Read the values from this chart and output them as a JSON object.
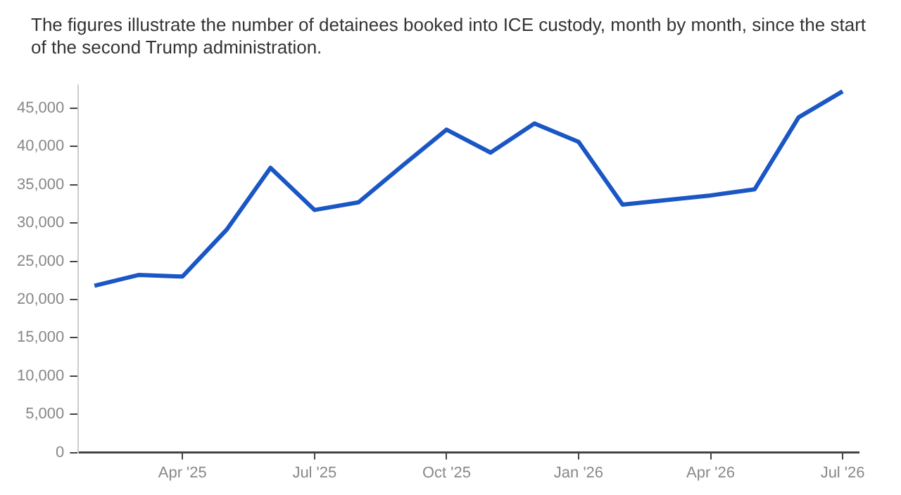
{
  "chart_data": {
    "type": "line",
    "title": "The figures illustrate the number of detainees booked into ICE custody, month by month, since the start of the second Trump administration.",
    "x": [
      "2025-02",
      "2025-03",
      "2025-04",
      "2025-05",
      "2025-06",
      "2025-07",
      "2025-08",
      "2025-09",
      "2025-10",
      "2025-11",
      "2025-12",
      "2026-01",
      "2026-02",
      "2026-03",
      "2026-04",
      "2026-05",
      "2026-06",
      "2026-07"
    ],
    "series": [
      {
        "color": "#1a56c4",
        "values": [
          21800,
          23200,
          23000,
          29100,
          37200,
          31700,
          32700,
          37500,
          42200,
          39200,
          43000,
          40600,
          32400,
          33000,
          33600,
          34400,
          43800,
          47200
        ]
      }
    ],
    "xlim": [
      "2025-01-20",
      "2026-07-12"
    ],
    "xticks": [
      {
        "value": "2025-04",
        "label": "Apr '25"
      },
      {
        "value": "2025-07",
        "label": "Jul '25"
      },
      {
        "value": "2025-10",
        "label": "Oct '25"
      },
      {
        "value": "2026-01",
        "label": "Jan '26"
      },
      {
        "value": "2026-04",
        "label": "Apr '26"
      },
      {
        "value": "2026-07",
        "label": "Jul '26"
      }
    ],
    "ylim": [
      0,
      48000
    ],
    "yticks": [
      0,
      {
        "value": 5000,
        "label": "5,000"
      },
      {
        "value": 10000,
        "label": "10,000"
      },
      {
        "value": 15000,
        "label": "15,000"
      },
      {
        "value": 20000,
        "label": "20,000"
      },
      {
        "value": 25000,
        "label": "25,000"
      },
      {
        "value": 30000,
        "label": "30,000"
      },
      {
        "value": 35000,
        "label": "35,000"
      },
      {
        "value": 40000,
        "label": "40,000"
      },
      {
        "value": 45000,
        "label": "45,000"
      }
    ],
    "grid": false,
    "legend": false,
    "marker": "none",
    "line_style": "solid"
  }
}
